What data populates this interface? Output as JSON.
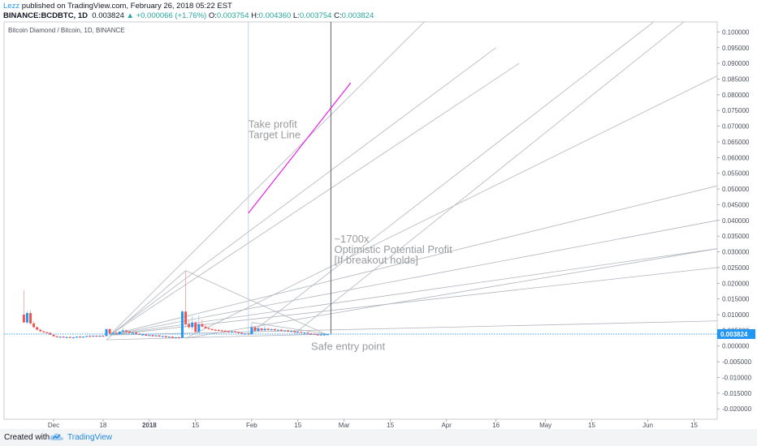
{
  "header": {
    "author": "Lezz",
    "published_text": "published on TradingView.com, February 26, 2018 05:22 EST",
    "symbol_line": "BINANCE:BCDBTC, 1D",
    "last": "0.003824",
    "change": "+0.000066 (+1.76%)",
    "o_label": "O:",
    "o": "0.003754",
    "h_label": "H:",
    "h": "0.004360",
    "l_label": "L:",
    "l": "0.003754",
    "c_label": "C:",
    "c": "0.003824"
  },
  "footer": {
    "created_with": "Created with",
    "brand": "TradingView"
  },
  "colors": {
    "up": "#2196f3",
    "down": "#ef5350",
    "target_line": "#e91ee8",
    "fan_line": "#b2b5be",
    "price_line": "#2196f3",
    "price_badge": "#2196f3"
  },
  "chart_data": {
    "type": "candlestick",
    "title": "Bitcoin Diamond / Bitcoin, 1D, BINANCE",
    "y_ticks": [
      "0.100000",
      "0.095000",
      "0.090000",
      "0.085000",
      "0.080000",
      "0.075000",
      "0.070000",
      "0.065000",
      "0.060000",
      "0.055000",
      "0.050000",
      "0.045000",
      "0.040000",
      "0.035000",
      "0.030000",
      "0.025000",
      "0.020000",
      "0.015000",
      "0.010000",
      "0.005000",
      "0.000000",
      "-0.005000",
      "-0.010000",
      "-0.015000",
      "-0.020000"
    ],
    "y_tick_values": [
      0.1,
      0.095,
      0.09,
      0.085,
      0.08,
      0.075,
      0.07,
      0.065,
      0.06,
      0.055,
      0.05,
      0.045,
      0.04,
      0.035,
      0.03,
      0.025,
      0.02,
      0.015,
      0.01,
      0.005,
      0,
      -0.005,
      -0.01,
      -0.015,
      -0.02
    ],
    "ylim": [
      -0.0233,
      0.1032
    ],
    "x_ticks": [
      {
        "label": "Dec",
        "day": 3
      },
      {
        "label": "18",
        "day": 18
      },
      {
        "label": "2018",
        "day": 32
      },
      {
        "label": "15",
        "day": 46
      },
      {
        "label": "Feb",
        "day": 63
      },
      {
        "label": "15",
        "day": 77
      },
      {
        "label": "Mar",
        "day": 91
      },
      {
        "label": "15",
        "day": 105
      },
      {
        "label": "Apr",
        "day": 122
      },
      {
        "label": "16",
        "day": 137
      },
      {
        "label": "May",
        "day": 152
      },
      {
        "label": "15",
        "day": 166
      },
      {
        "label": "Jun",
        "day": 183
      },
      {
        "label": "15",
        "day": 197
      }
    ],
    "xlim": [
      -12,
      204
    ],
    "last_price": 0.003824,
    "last_price_label": "0.003824",
    "candles": [
      [
        -6,
        0.01,
        0.0178,
        0.008,
        0.0075
      ],
      [
        -5,
        0.0075,
        0.0112,
        0.007,
        0.0105
      ],
      [
        -4,
        0.0105,
        0.0115,
        0.0068,
        0.0072
      ],
      [
        -3,
        0.0072,
        0.0078,
        0.0058,
        0.006
      ],
      [
        -2,
        0.006,
        0.0062,
        0.005,
        0.0052
      ],
      [
        -1,
        0.0052,
        0.0054,
        0.0045,
        0.0047
      ],
      [
        0,
        0.0047,
        0.0049,
        0.0042,
        0.0044
      ],
      [
        1,
        0.0044,
        0.0046,
        0.004,
        0.0042
      ],
      [
        2,
        0.0042,
        0.0044,
        0.0035,
        0.0036
      ],
      [
        3,
        0.0036,
        0.0038,
        0.003,
        0.0031
      ],
      [
        4,
        0.0031,
        0.0033,
        0.0027,
        0.0028
      ],
      [
        5,
        0.0028,
        0.0031,
        0.0026,
        0.003
      ],
      [
        6,
        0.003,
        0.0032,
        0.0026,
        0.0027
      ],
      [
        7,
        0.0027,
        0.003,
        0.0025,
        0.0029
      ],
      [
        8,
        0.0029,
        0.0031,
        0.0026,
        0.0027
      ],
      [
        9,
        0.0027,
        0.003,
        0.0026,
        0.0028
      ],
      [
        10,
        0.0028,
        0.0031,
        0.0026,
        0.003
      ],
      [
        11,
        0.003,
        0.0032,
        0.0028,
        0.0029
      ],
      [
        12,
        0.0029,
        0.0031,
        0.0027,
        0.003
      ],
      [
        13,
        0.003,
        0.0033,
        0.0029,
        0.0032
      ],
      [
        14,
        0.0032,
        0.0036,
        0.003,
        0.0031
      ],
      [
        15,
        0.0031,
        0.0034,
        0.0029,
        0.0033
      ],
      [
        16,
        0.0033,
        0.0034,
        0.0029,
        0.003
      ],
      [
        17,
        0.003,
        0.0034,
        0.0028,
        0.0033
      ],
      [
        18,
        0.0033,
        0.0036,
        0.003,
        0.0031
      ],
      [
        19,
        0.0032,
        0.0055,
        0.003,
        0.0054
      ],
      [
        20,
        0.0054,
        0.0056,
        0.0038,
        0.004
      ],
      [
        21,
        0.004,
        0.0044,
        0.0035,
        0.0042
      ],
      [
        22,
        0.0042,
        0.0046,
        0.0038,
        0.0039
      ],
      [
        23,
        0.0039,
        0.0048,
        0.0037,
        0.0046
      ],
      [
        24,
        0.0046,
        0.006,
        0.0043,
        0.005
      ],
      [
        25,
        0.005,
        0.0052,
        0.0044,
        0.0046
      ],
      [
        26,
        0.0046,
        0.0048,
        0.004,
        0.0042
      ],
      [
        27,
        0.0042,
        0.0045,
        0.0039,
        0.0043
      ],
      [
        28,
        0.0043,
        0.0044,
        0.0038,
        0.0039
      ],
      [
        29,
        0.0039,
        0.0041,
        0.0035,
        0.0036
      ],
      [
        30,
        0.0036,
        0.0039,
        0.0033,
        0.0037
      ],
      [
        31,
        0.0037,
        0.0038,
        0.0032,
        0.0033
      ],
      [
        32,
        0.0033,
        0.0036,
        0.0031,
        0.0035
      ],
      [
        33,
        0.0035,
        0.0036,
        0.003,
        0.0031
      ],
      [
        34,
        0.0031,
        0.0035,
        0.0029,
        0.0034
      ],
      [
        35,
        0.0034,
        0.0035,
        0.0029,
        0.003
      ],
      [
        36,
        0.003,
        0.0033,
        0.0028,
        0.0032
      ],
      [
        37,
        0.0032,
        0.0033,
        0.0027,
        0.0028
      ],
      [
        38,
        0.0028,
        0.0031,
        0.0026,
        0.003
      ],
      [
        39,
        0.003,
        0.0031,
        0.0025,
        0.0026
      ],
      [
        40,
        0.0026,
        0.0029,
        0.0024,
        0.0028
      ],
      [
        41,
        0.0028,
        0.003,
        0.0025,
        0.0026
      ],
      [
        42,
        0.0026,
        0.0115,
        0.0025,
        0.011
      ],
      [
        43,
        0.011,
        0.024,
        0.006,
        0.007
      ],
      [
        44,
        0.007,
        0.0082,
        0.0055,
        0.006
      ],
      [
        45,
        0.006,
        0.0095,
        0.005,
        0.0075
      ],
      [
        46,
        0.0075,
        0.008,
        0.004,
        0.0045
      ],
      [
        47,
        0.0045,
        0.0098,
        0.0042,
        0.007
      ],
      [
        48,
        0.007,
        0.0085,
        0.0058,
        0.0062
      ],
      [
        49,
        0.0062,
        0.0068,
        0.0055,
        0.0057
      ],
      [
        50,
        0.0057,
        0.006,
        0.0052,
        0.0054
      ],
      [
        51,
        0.0054,
        0.0057,
        0.005,
        0.0052
      ],
      [
        52,
        0.0052,
        0.0055,
        0.0049,
        0.0051
      ],
      [
        53,
        0.0051,
        0.0054,
        0.0048,
        0.005
      ],
      [
        54,
        0.005,
        0.0052,
        0.0047,
        0.0049
      ],
      [
        55,
        0.0049,
        0.0051,
        0.0046,
        0.0048
      ],
      [
        56,
        0.0048,
        0.005,
        0.0045,
        0.0046
      ],
      [
        57,
        0.0046,
        0.0049,
        0.0044,
        0.0047
      ],
      [
        58,
        0.0047,
        0.0048,
        0.0043,
        0.0044
      ],
      [
        59,
        0.0044,
        0.0046,
        0.0041,
        0.0042
      ],
      [
        60,
        0.0042,
        0.0044,
        0.0038,
        0.0039
      ],
      [
        61,
        0.0039,
        0.0041,
        0.0037,
        0.004
      ],
      [
        62,
        0.004,
        0.0042,
        0.0037,
        0.0038
      ],
      [
        63,
        0.0038,
        0.0075,
        0.0036,
        0.006
      ],
      [
        64,
        0.006,
        0.0062,
        0.0045,
        0.0048
      ],
      [
        65,
        0.0048,
        0.0065,
        0.0046,
        0.0056
      ],
      [
        66,
        0.0056,
        0.0058,
        0.0048,
        0.005
      ],
      [
        67,
        0.005,
        0.0072,
        0.0049,
        0.0055
      ],
      [
        68,
        0.0055,
        0.0058,
        0.0049,
        0.0051
      ],
      [
        69,
        0.0051,
        0.0056,
        0.0049,
        0.0054
      ],
      [
        70,
        0.0054,
        0.0056,
        0.0049,
        0.005
      ],
      [
        71,
        0.005,
        0.0053,
        0.0048,
        0.0052
      ],
      [
        72,
        0.0052,
        0.0054,
        0.0047,
        0.0048
      ],
      [
        73,
        0.0048,
        0.0051,
        0.0046,
        0.005
      ],
      [
        74,
        0.005,
        0.0051,
        0.0045,
        0.0046
      ],
      [
        75,
        0.0046,
        0.0049,
        0.0044,
        0.0048
      ],
      [
        76,
        0.0048,
        0.0049,
        0.0043,
        0.0044
      ],
      [
        77,
        0.0044,
        0.0047,
        0.0042,
        0.0045
      ],
      [
        78,
        0.0045,
        0.0046,
        0.0041,
        0.0042
      ],
      [
        79,
        0.0042,
        0.0044,
        0.004,
        0.0043
      ],
      [
        80,
        0.0043,
        0.0044,
        0.0039,
        0.004
      ],
      [
        81,
        0.004,
        0.0042,
        0.0038,
        0.0039
      ],
      [
        82,
        0.0039,
        0.0041,
        0.0036,
        0.0037
      ],
      [
        83,
        0.0037,
        0.0039,
        0.0035,
        0.0036
      ],
      [
        84,
        0.0036,
        0.0038,
        0.0035,
        0.0037
      ],
      [
        85,
        0.0037,
        0.0038,
        0.0036,
        0.0037
      ],
      [
        86,
        0.0037,
        0.0039,
        0.0037,
        0.0038
      ]
    ],
    "target_line": {
      "from": [
        62,
        0.0423
      ],
      "to": [
        93,
        0.0838
      ]
    },
    "fan_lines": [
      {
        "from": [
          20,
          0.0035
        ],
        "to": [
          117,
          0.105
        ]
      },
      {
        "from": [
          20,
          0.0035
        ],
        "to": [
          144,
          0.09
        ]
      },
      {
        "from": [
          20,
          0.0035
        ],
        "to": [
          137,
          0.095
        ]
      },
      {
        "from": [
          20,
          0.0035
        ],
        "to": [
          204,
          0.051
        ]
      },
      {
        "from": [
          20,
          0.0035
        ],
        "to": [
          204,
          0.04
        ]
      },
      {
        "from": [
          20,
          0.0035
        ],
        "to": [
          204,
          0.031
        ]
      },
      {
        "from": [
          20,
          0.0035
        ],
        "to": [
          204,
          0.025
        ]
      },
      {
        "from": [
          20,
          0.0035
        ],
        "to": [
          204,
          0.008
        ]
      },
      {
        "from": [
          43,
          0.0025
        ],
        "to": [
          204,
          0.031
        ]
      },
      {
        "from": [
          43,
          0.0025
        ],
        "to": [
          204,
          0.086
        ]
      },
      {
        "from": [
          62,
          0.0035
        ],
        "to": [
          187,
          0.105
        ]
      },
      {
        "from": [
          76,
          0.004
        ],
        "to": [
          196,
          0.105
        ]
      },
      {
        "from": [
          43,
          0.024
        ],
        "to": [
          86,
          0.0035
        ]
      },
      {
        "from": [
          63,
          0.0075
        ],
        "to": [
          86,
          0.0038
        ]
      },
      {
        "from": [
          19,
          0.002
        ],
        "to": [
          86,
          0.0038
        ]
      },
      {
        "from": [
          19,
          0.002
        ],
        "to": [
          43,
          0.024
        ]
      }
    ],
    "vertical_lines": [
      {
        "day": 62,
        "dark": false
      },
      {
        "day": 87,
        "dark": true
      }
    ],
    "annotations": [
      {
        "lines": [
          "Take profit",
          "Target Line"
        ],
        "day": 62,
        "value": 0.0695,
        "size": 13
      },
      {
        "lines": [
          "~1700x",
          "Optimistic Potential Profit",
          "[If breakout holds]"
        ],
        "day": 88,
        "value": 0.033,
        "size": 13
      },
      {
        "lines": [
          "Safe entry point"
        ],
        "day": 81,
        "value": -0.0012,
        "size": 13
      }
    ]
  }
}
